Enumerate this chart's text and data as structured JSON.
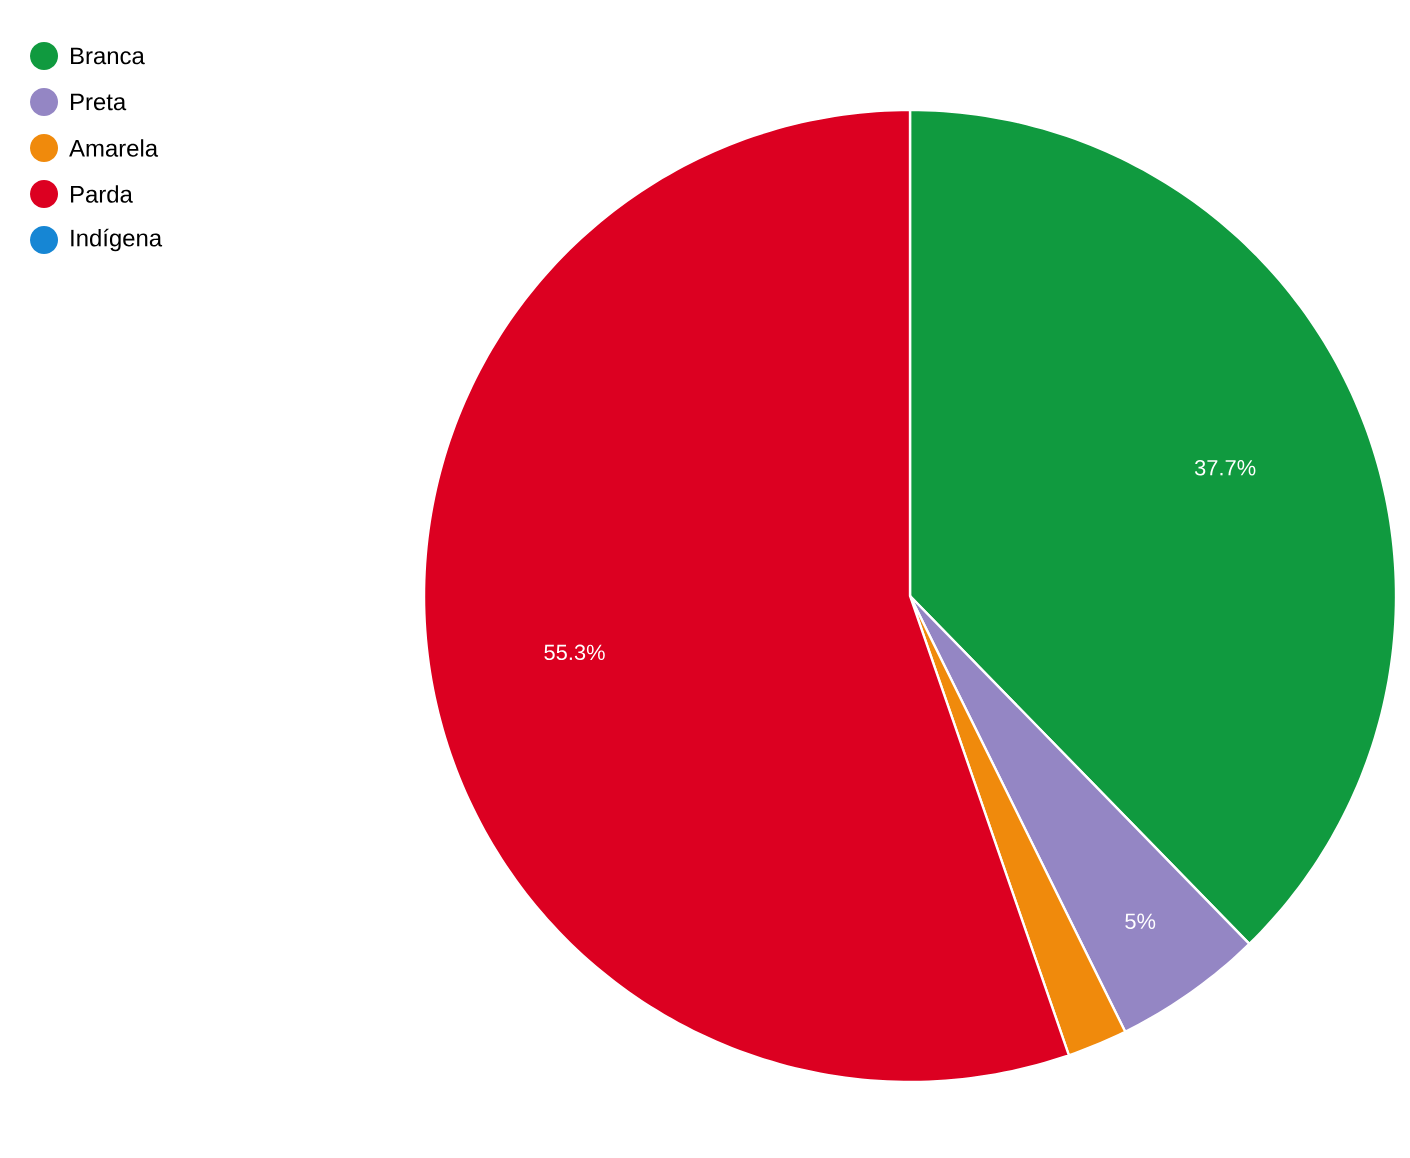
{
  "chart_data": {
    "type": "pie",
    "categories": [
      "Branca",
      "Preta",
      "Amarela",
      "Parda",
      "Indígena"
    ],
    "values": [
      37.7,
      5,
      2,
      55.3,
      0
    ],
    "colors": [
      "#109a3f",
      "#9486c4",
      "#f08a0c",
      "#dc0021",
      "#1686d4"
    ],
    "value_labels": [
      "37.7%",
      "5%",
      null,
      "55.3%",
      null
    ],
    "legend": "top left"
  }
}
